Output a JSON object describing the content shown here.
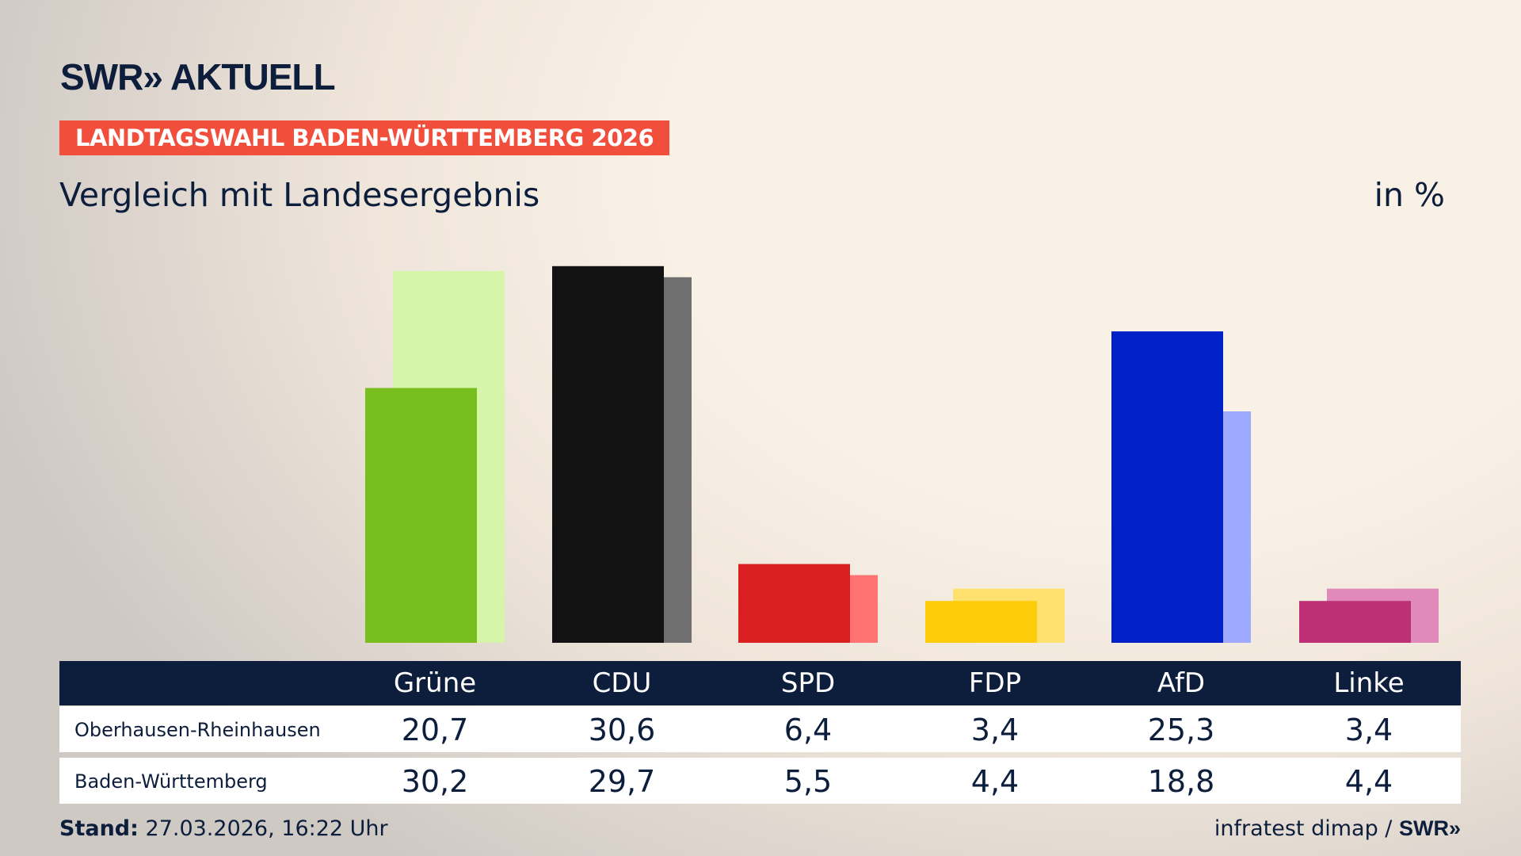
{
  "header": {
    "logo": "SWR» AKTUELL",
    "banner": "LANDTAGSWAHL BADEN-WÜRTTEMBERG 2026",
    "subtitle": "Vergleich mit Landesergebnis",
    "unit": "in %"
  },
  "chart_data": {
    "type": "bar",
    "categories": [
      "Grüne",
      "CDU",
      "SPD",
      "FDP",
      "AfD",
      "Linke"
    ],
    "series": [
      {
        "name": "Oberhausen-Rheinhausen",
        "values": [
          20.7,
          30.6,
          6.4,
          3.4,
          25.3,
          3.4
        ],
        "colors": [
          "#78be1e",
          "#121212",
          "#d91f1f",
          "#ffcc0a",
          "#0021c8",
          "#bd3075"
        ]
      },
      {
        "name": "Baden-Württemberg",
        "values": [
          30.2,
          29.7,
          5.5,
          4.4,
          18.8,
          4.4
        ],
        "colors": [
          "#d6f5a8",
          "#6f6f6f",
          "#ff7373",
          "#ffe170",
          "#9eaaff",
          "#df8ab8"
        ]
      }
    ],
    "display_values": [
      [
        "20,7",
        "30,6",
        "6,4",
        "3,4",
        "25,3",
        "3,4"
      ],
      [
        "30,2",
        "29,7",
        "5,5",
        "4,4",
        "18,8",
        "4,4"
      ]
    ],
    "grid": false
  },
  "footer": {
    "stand_label": "Stand:",
    "stand_value": "27.03.2026, 16:22 Uhr",
    "source": "infratest dimap / ",
    "source_logo": "SWR»"
  }
}
